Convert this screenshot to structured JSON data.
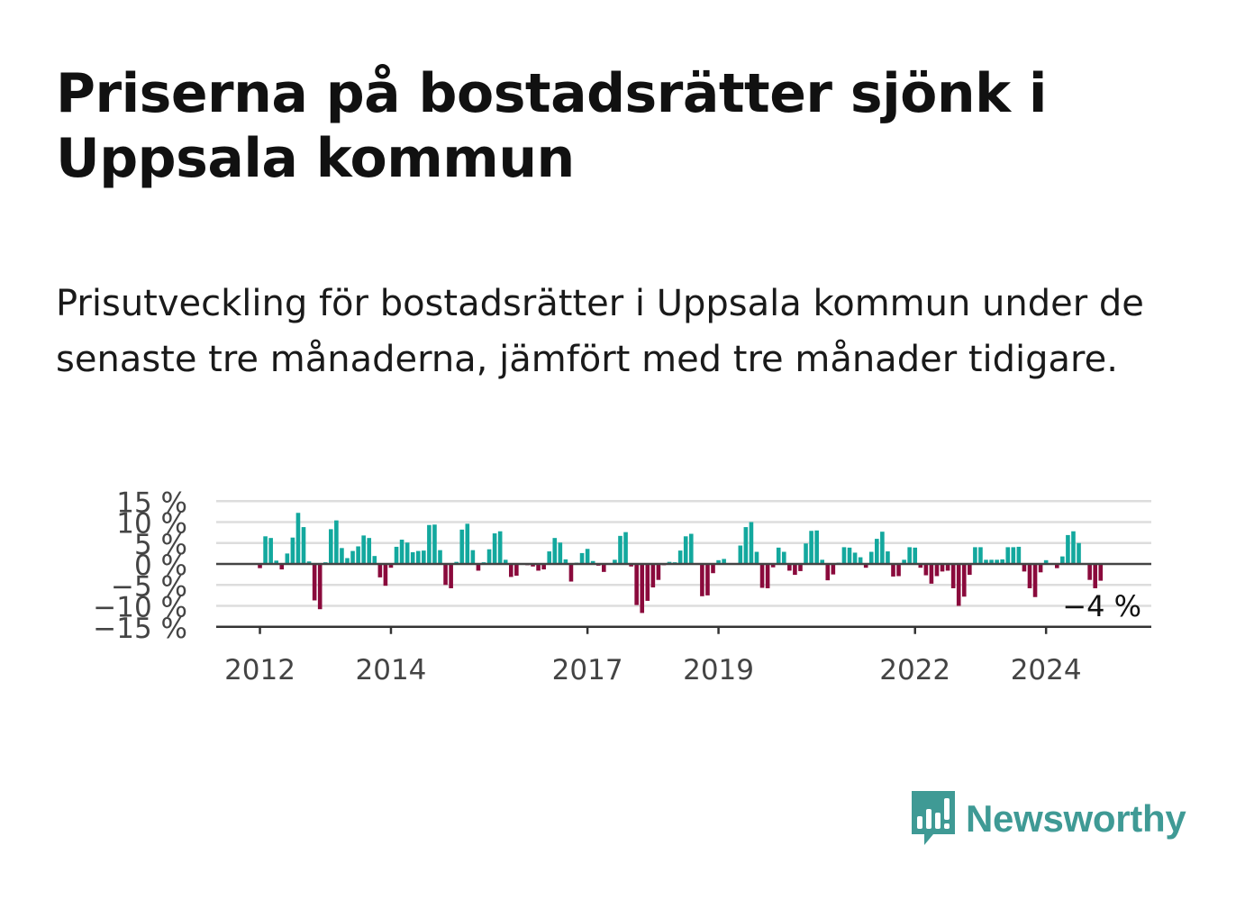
{
  "header": {
    "title": "Priserna på bostadsrätter sjönk i Uppsala kommun",
    "subtitle": "Prisutveckling för bostadsrätter i Uppsala kommun under de senaste tre månaderna, jämfört med tre månader tidigare."
  },
  "brand": {
    "name": "Newsworthy",
    "icon": "newsworthy-logo-icon",
    "color": "#3f9a95"
  },
  "chart_data": {
    "type": "bar",
    "start": "2012-01",
    "frequency": "monthly",
    "unit": "%",
    "y_ticks": [
      "15 %",
      "10 %",
      "5 %",
      "0 %",
      "−5 %",
      "−10 %",
      "−15 %"
    ],
    "y_tick_values": [
      15,
      10,
      5,
      0,
      -5,
      -10,
      -15
    ],
    "ylim": [
      -15,
      15
    ],
    "x_ticks": [
      {
        "label": "2012",
        "date": "2012-01"
      },
      {
        "label": "2014",
        "date": "2014-01"
      },
      {
        "label": "2017",
        "date": "2017-01"
      },
      {
        "label": "2019",
        "date": "2019-01"
      },
      {
        "label": "2022",
        "date": "2022-01"
      },
      {
        "label": "2024",
        "date": "2024-01"
      }
    ],
    "grid": true,
    "colors": {
      "positive": "#13a89e",
      "negative": "#8a0a3c"
    },
    "last_value_label": "−4 %",
    "values": [
      -1.0,
      6.6,
      6.2,
      0.8,
      -1.3,
      2.5,
      6.3,
      12.2,
      8.8,
      0.6,
      -8.7,
      -10.8,
      0.4,
      8.3,
      10.4,
      3.8,
      1.4,
      3.1,
      4.2,
      6.8,
      6.2,
      1.9,
      -3.2,
      -5.2,
      -0.9,
      4.1,
      5.8,
      5.1,
      2.8,
      3.1,
      3.2,
      9.3,
      9.4,
      3.3,
      -5.0,
      -5.8,
      0.5,
      8.2,
      9.6,
      3.3,
      -1.6,
      0.4,
      3.5,
      7.3,
      7.8,
      1.0,
      -3.1,
      -2.8,
      0.2,
      -0.3,
      -0.6,
      -1.6,
      -1.3,
      3.0,
      6.2,
      5.1,
      1.1,
      -4.2,
      0.3,
      2.6,
      3.6,
      0.7,
      -0.4,
      -1.9,
      0.2,
      1.0,
      6.7,
      7.6,
      -0.6,
      -9.8,
      -11.7,
      -8.8,
      -5.6,
      -3.8,
      -0.3,
      0.5,
      0.4,
      3.2,
      6.6,
      7.2,
      0.1,
      -7.7,
      -7.5,
      -2.2,
      0.9,
      1.2,
      0.2,
      0.1,
      4.4,
      8.8,
      10.0,
      2.9,
      -5.7,
      -5.8,
      -0.8,
      3.9,
      2.9,
      -1.6,
      -2.6,
      -1.7,
      4.9,
      7.9,
      8.0,
      1.0,
      -3.9,
      -2.5,
      0.3,
      4.0,
      3.9,
      2.7,
      1.6,
      -0.9,
      2.9,
      6.0,
      7.7,
      3.0,
      -3.0,
      -2.9,
      1.0,
      4.0,
      3.9,
      -0.9,
      -2.7,
      -4.7,
      -2.9,
      -1.8,
      -1.6,
      -5.8,
      -10.0,
      -7.8,
      -2.6,
      4.0,
      4.0,
      1.0,
      1.0,
      1.0,
      1.1,
      4.0,
      4.0,
      4.1,
      -1.8,
      -5.8,
      -7.9,
      -2.0,
      0.9,
      -0.1,
      -1.0,
      1.8,
      6.9,
      7.8,
      5.0,
      0.1,
      -3.8,
      -5.8,
      -4.0
    ]
  }
}
